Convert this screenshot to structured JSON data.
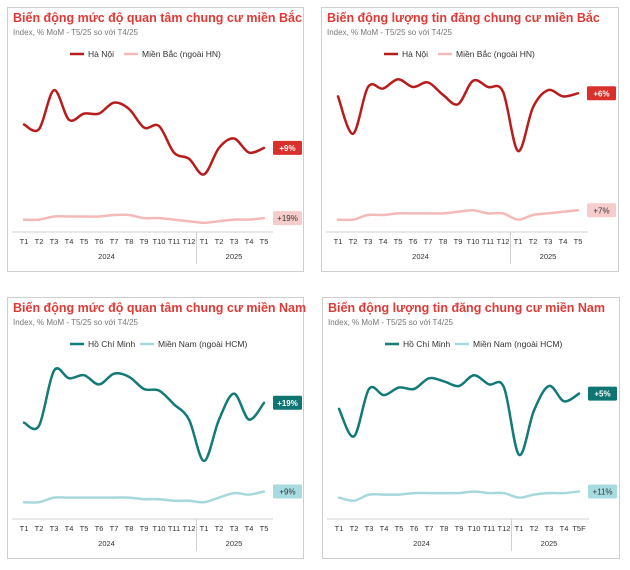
{
  "chart_data": [
    {
      "type": "line",
      "title": "Biến động mức độ quan tâm chung cư miền Bắc",
      "subtitle": "Index, % MoM - T5/25 so với T4/25",
      "colors": {
        "primary": "#b81c1c",
        "secondary": "#f4b9b9",
        "badge_primary": "#d9302b",
        "badge_secondary": "#f6cccc",
        "badge_secondary_text": "#333333"
      },
      "categories": [
        "T1",
        "T2",
        "T3",
        "T4",
        "T5",
        "T6",
        "T7",
        "T8",
        "T9",
        "T10",
        "T11",
        "T12",
        "T1",
        "T2",
        "T3",
        "T4",
        "T5"
      ],
      "years": [
        {
          "label": "2024",
          "span": 12
        },
        {
          "label": "2025",
          "span": 5
        }
      ],
      "ylim": [
        0,
        100
      ],
      "series": [
        {
          "name": "Hà Nội",
          "values": [
            67,
            64,
            89,
            70,
            74,
            74,
            81,
            77,
            65,
            66,
            49,
            45,
            35,
            52,
            58,
            49,
            52
          ],
          "label": "+9%"
        },
        {
          "name": "Miền Bắc (ngoài HN)",
          "values": [
            6,
            6,
            8,
            8,
            8,
            8,
            9,
            9,
            7,
            7,
            6,
            5,
            4,
            5,
            6,
            6,
            7
          ],
          "label": "+19%"
        }
      ]
    },
    {
      "type": "line",
      "title": "Biến động lượng tin đăng chung cư miền Bắc",
      "subtitle": "Index, % MoM - T5/25 so với T4/25",
      "colors": {
        "primary": "#b81c1c",
        "secondary": "#f4b9b9",
        "badge_primary": "#d9302b",
        "badge_secondary": "#f6cccc",
        "badge_secondary_text": "#333333"
      },
      "categories": [
        "T1",
        "T2",
        "T3",
        "T4",
        "T5",
        "T6",
        "T7",
        "T8",
        "T9",
        "T10",
        "T11",
        "T12",
        "T1",
        "T2",
        "T3",
        "T4",
        "T5"
      ],
      "years": [
        {
          "label": "2024",
          "span": 12
        },
        {
          "label": "2025",
          "span": 5
        }
      ],
      "ylim": [
        0,
        100
      ],
      "series": [
        {
          "name": "Hà Nội",
          "values": [
            85,
            61,
            91,
            90,
            96,
            91,
            94,
            86,
            80,
            95,
            91,
            88,
            50,
            78,
            89,
            85,
            87
          ],
          "label": "+6%"
        },
        {
          "name": "Miền Bắc (ngoài HN)",
          "values": [
            6,
            6,
            9,
            9,
            10,
            10,
            10,
            10,
            11,
            12,
            10,
            10,
            6,
            9,
            10,
            11,
            12
          ],
          "label": "+7%"
        }
      ]
    },
    {
      "type": "line",
      "title": "Biến động mức độ quan tâm chung cư miền Nam",
      "subtitle": "Index, % MoM - T5/25 so với T4/25",
      "colors": {
        "primary": "#127a78",
        "secondary": "#a7d8dd",
        "badge_primary": "#0f7573",
        "badge_secondary": "#a6dbe0",
        "badge_secondary_text": "#333333"
      },
      "categories": [
        "T1",
        "T2",
        "T3",
        "T4",
        "T5",
        "T6",
        "T7",
        "T8",
        "T9",
        "T10",
        "T11",
        "T12",
        "T1",
        "T2",
        "T3",
        "T4",
        "T5"
      ],
      "years": [
        {
          "label": "2024",
          "span": 12
        },
        {
          "label": "2025",
          "span": 5
        }
      ],
      "ylim": [
        0,
        100
      ],
      "series": [
        {
          "name": "Hồ Chí Minh",
          "values": [
            61,
            59,
            95,
            90,
            92,
            86,
            93,
            91,
            83,
            82,
            73,
            63,
            36,
            63,
            80,
            63,
            74
          ],
          "label": "+19%"
        },
        {
          "name": "Miền Nam (ngoài HCM)",
          "values": [
            9,
            9,
            12,
            12,
            12,
            12,
            12,
            12,
            11,
            11,
            10,
            10,
            9,
            12,
            15,
            14,
            16
          ],
          "label": "+9%"
        }
      ]
    },
    {
      "type": "line",
      "title": "Biến động lượng tin đăng chung cư miền Nam",
      "subtitle": "Index, % MoM - T5/25 so với T4/25",
      "colors": {
        "primary": "#127a78",
        "secondary": "#a7d8dd",
        "badge_primary": "#0f7573",
        "badge_secondary": "#a6dbe0",
        "badge_secondary_text": "#333333"
      },
      "categories": [
        "T1",
        "T2",
        "T3",
        "T4",
        "T5",
        "T6",
        "T7",
        "T8",
        "T9",
        "T10",
        "T11",
        "T12",
        "T1",
        "T2",
        "T3",
        "T4",
        "T5F"
      ],
      "years": [
        {
          "label": "2024",
          "span": 12
        },
        {
          "label": "2025",
          "span": 5
        }
      ],
      "ylim": [
        0,
        100
      ],
      "series": [
        {
          "name": "Hồ Chí Minh",
          "values": [
            70,
            52,
            83,
            79,
            84,
            83,
            90,
            88,
            85,
            92,
            86,
            84,
            40,
            69,
            85,
            75,
            80
          ],
          "label": "+5%"
        },
        {
          "name": "Miền Nam (ngoài HCM)",
          "values": [
            12,
            10,
            14,
            14,
            14,
            15,
            15,
            15,
            15,
            16,
            15,
            15,
            12,
            14,
            15,
            15,
            16
          ],
          "label": "+11%"
        }
      ]
    }
  ]
}
